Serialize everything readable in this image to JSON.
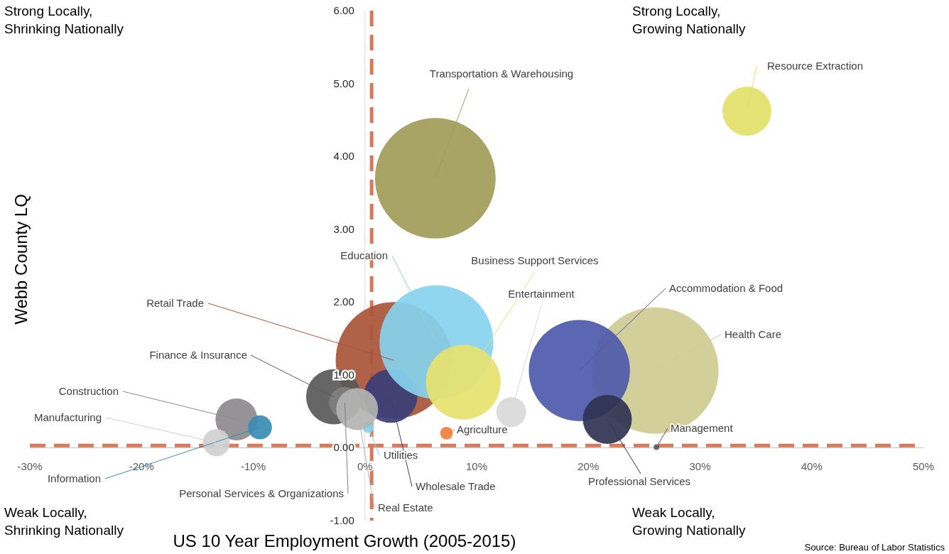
{
  "chart_data": {
    "type": "bubble",
    "xlabel": "US 10 Year Employment Growth (2005-2015)",
    "ylabel": "Webb County LQ",
    "xlim": [
      -30,
      50
    ],
    "ylim": [
      -1,
      6
    ],
    "xticks": [
      {
        "value": -30,
        "label": "-30%"
      },
      {
        "value": -20,
        "label": "-20%"
      },
      {
        "value": -10,
        "label": "-10%"
      },
      {
        "value": 0,
        "label": "0%"
      },
      {
        "value": 10,
        "label": "10%"
      },
      {
        "value": 20,
        "label": "20%"
      },
      {
        "value": 30,
        "label": "30%"
      },
      {
        "value": 40,
        "label": "40%"
      },
      {
        "value": 50,
        "label": "50%"
      }
    ],
    "yticks": [
      {
        "value": -1,
        "label": "-1.00"
      },
      {
        "value": 0,
        "label": "0.00"
      },
      {
        "value": 1,
        "label": "1.00"
      },
      {
        "value": 2,
        "label": "2.00"
      },
      {
        "value": 3,
        "label": "3.00"
      },
      {
        "value": 4,
        "label": "4.00"
      },
      {
        "value": 5,
        "label": "5.00"
      },
      {
        "value": 6,
        "label": "6.00"
      }
    ],
    "ref_lines": [
      {
        "axis": "x",
        "value": 0.6,
        "color": "#d9795a",
        "line_style": "dashed"
      },
      {
        "axis": "y",
        "value": 0.03,
        "color": "#d9795a",
        "line_style": "dashed"
      }
    ],
    "annotations": [
      "Strong Locally,\nShrinking Nationally",
      "Strong Locally,\nGrowing Nationally",
      "Weak Locally,\nShrinking Nationally",
      "Weak Locally,\nGrowing Nationally",
      "Source: Bureau of Labor Statistics"
    ],
    "series": [
      {
        "name": "Transportation & Warehousing",
        "color": "#a09c58",
        "x": [
          6.3
        ],
        "values": [
          3.7
        ],
        "sizes": [
          0.91
        ]
      },
      {
        "name": "Resource Extraction",
        "color": "#e3e06a",
        "x": [
          34.2
        ],
        "values": [
          4.62
        ],
        "sizes": [
          0.15
        ]
      },
      {
        "name": "Retail Trade",
        "color": "#a9553a",
        "x": [
          2.6
        ],
        "values": [
          1.2
        ],
        "sizes": [
          0.85
        ]
      },
      {
        "name": "Wholesale Trade",
        "color": "#3a3d78",
        "x": [
          2.3
        ],
        "values": [
          0.71
        ],
        "sizes": [
          0.18
        ]
      },
      {
        "name": "Education",
        "color": "#87d3ef",
        "x": [
          6.4
        ],
        "values": [
          1.45
        ],
        "sizes": [
          0.81
        ]
      },
      {
        "name": "Business Support Services",
        "color": "#e6e26f",
        "x": [
          8.8
        ],
        "values": [
          0.9
        ],
        "sizes": [
          0.35
        ]
      },
      {
        "name": "Entertainment",
        "color": "#d9d9d9",
        "x": [
          13.1
        ],
        "values": [
          0.49
        ],
        "sizes": [
          0.056
        ]
      },
      {
        "name": "Health Care",
        "color": "#cfcb93",
        "x": [
          26
        ],
        "values": [
          1.06
        ],
        "sizes": [
          1
        ]
      },
      {
        "name": "Accommodation & Food",
        "color": "#4d5aab",
        "x": [
          19.2
        ],
        "values": [
          1.06
        ],
        "sizes": [
          0.64
        ]
      },
      {
        "name": "Professional Services",
        "color": "#2f3352",
        "x": [
          21.7
        ],
        "values": [
          0.39
        ],
        "sizes": [
          0.15
        ]
      },
      {
        "name": "Management",
        "color": "#595959",
        "x": [
          26.1
        ],
        "values": [
          0.01
        ],
        "sizes": [
          0.002
        ]
      },
      {
        "name": "Agriculture",
        "color": "#f07f3c",
        "x": [
          7.3
        ],
        "values": [
          0.2
        ],
        "sizes": [
          0.01
        ]
      },
      {
        "name": "Utilities",
        "color": "#87d3ef",
        "x": [
          0.3
        ],
        "values": [
          0.28
        ],
        "sizes": [
          0.008
        ]
      },
      {
        "name": "Finance & Insurance",
        "color": "#595959",
        "x": [
          -2.8
        ],
        "values": [
          0.7
        ],
        "sizes": [
          0.19
        ]
      },
      {
        "name": "Personal Services & Organizations",
        "color": "#7f7f7f",
        "x": [
          -1.8
        ],
        "values": [
          0.62
        ],
        "sizes": [
          0.061
        ]
      },
      {
        "name": "Real Estate",
        "color": "#b3b3b3",
        "x": [
          -0.7
        ],
        "values": [
          0.53
        ],
        "sizes": [
          0.11
        ]
      },
      {
        "name": "Construction",
        "color": "#8c8a8c",
        "x": [
          -11.5
        ],
        "values": [
          0.39
        ],
        "sizes": [
          0.11
        ]
      },
      {
        "name": "Information",
        "color": "#3a8bb5",
        "x": [
          -9.4
        ],
        "values": [
          0.28
        ],
        "sizes": [
          0.036
        ]
      },
      {
        "name": "Manufacturing",
        "color": "#d0d0d0",
        "x": [
          -13.3
        ],
        "values": [
          0.07
        ],
        "sizes": [
          0.046
        ]
      }
    ]
  }
}
